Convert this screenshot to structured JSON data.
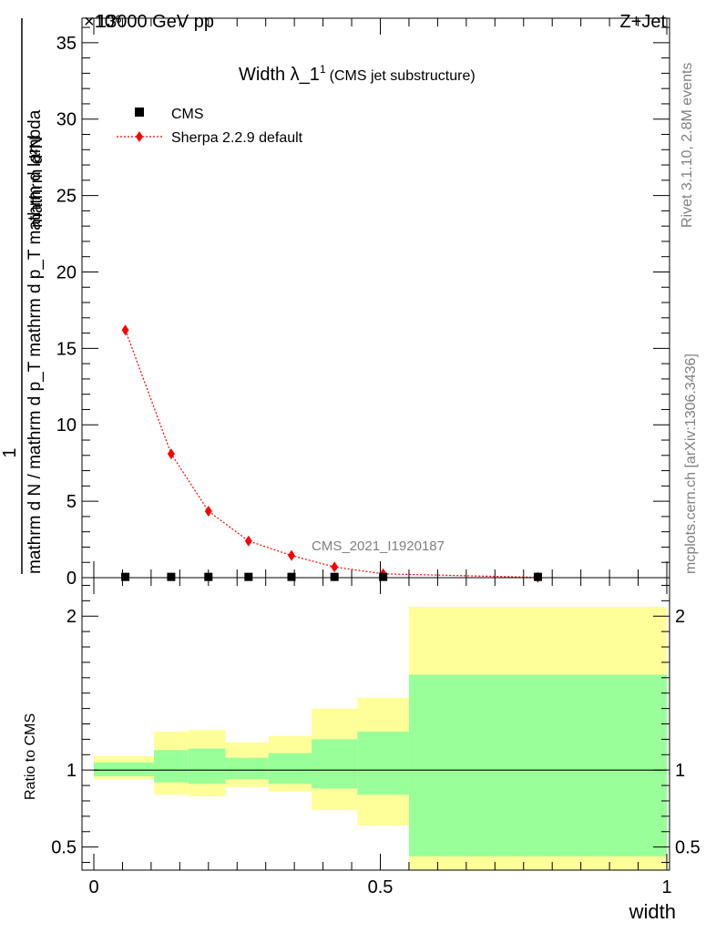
{
  "header": {
    "energy": "13000 GeV pp",
    "process": "Z+Jet",
    "exponent": "×10⁶"
  },
  "title": {
    "main": "Width λ_1",
    "sup": "1",
    "sub": "(CMS jet substructure)"
  },
  "side": {
    "rivet": "Rivet 3.1.10,  2.8M events",
    "source": "mcplots.cern.ch [arXiv:1306.3436]"
  },
  "watermark": "CMS_2021_I1920187",
  "colors": {
    "mc": "#ff0000",
    "band_stat": "#99ff99",
    "band_total": "#ffff99"
  },
  "chart_data": [
    {
      "type": "scatter",
      "name": "main",
      "ylabel_numerator": "1",
      "ylabel_denominator": "mathrm d N / mathrm d p_T mathrm d p_T mathrm d lambda",
      "ylabel_top": "mathrm d²N",
      "xlim": [
        0,
        1
      ],
      "ylim": [
        0,
        36.6
      ],
      "y_ticks": [
        "0",
        "5",
        "10",
        "15",
        "20",
        "25",
        "30",
        "35"
      ],
      "legend": {
        "position": "top-left",
        "entries": [
          "CMS",
          "Sherpa 2.2.9 default"
        ]
      },
      "series": [
        {
          "name": "CMS",
          "marker": "square",
          "x": [
            0.055,
            0.135,
            0.2,
            0.27,
            0.345,
            0.42,
            0.505,
            0.775
          ],
          "y": [
            0.05,
            0.05,
            0.05,
            0.05,
            0.05,
            0.05,
            0.05,
            0.05
          ]
        },
        {
          "name": "Sherpa 2.2.9 default",
          "marker": "diamond",
          "x": [
            0.055,
            0.135,
            0.2,
            0.27,
            0.345,
            0.42,
            0.505,
            0.775
          ],
          "y": [
            16.2,
            8.1,
            4.35,
            2.4,
            1.45,
            0.7,
            0.25,
            0.02
          ]
        }
      ]
    },
    {
      "type": "area",
      "name": "ratio",
      "ylabel": "Ratio to CMS",
      "xlabel": "width",
      "xlim": [
        0,
        1
      ],
      "ylim": [
        0.35,
        2.25
      ],
      "x_ticks": [
        "0",
        "0.5",
        "1"
      ],
      "y_ticks": [
        "0.5",
        "1",
        "2"
      ],
      "bins": [
        {
          "lo": 0.0,
          "hi": 0.105,
          "stat": [
            0.96,
            1.05
          ],
          "total": [
            0.94,
            1.09
          ]
        },
        {
          "lo": 0.105,
          "hi": 0.165,
          "stat": [
            0.92,
            1.13
          ],
          "total": [
            0.84,
            1.25
          ]
        },
        {
          "lo": 0.165,
          "hi": 0.23,
          "stat": [
            0.91,
            1.14
          ],
          "total": [
            0.83,
            1.26
          ]
        },
        {
          "lo": 0.23,
          "hi": 0.305,
          "stat": [
            0.94,
            1.08
          ],
          "total": [
            0.89,
            1.18
          ]
        },
        {
          "lo": 0.305,
          "hi": 0.38,
          "stat": [
            0.91,
            1.11
          ],
          "total": [
            0.86,
            1.22
          ]
        },
        {
          "lo": 0.38,
          "hi": 0.46,
          "stat": [
            0.88,
            1.2
          ],
          "total": [
            0.74,
            1.4
          ]
        },
        {
          "lo": 0.46,
          "hi": 0.55,
          "stat": [
            0.84,
            1.25
          ],
          "total": [
            0.64,
            1.47
          ]
        },
        {
          "lo": 0.55,
          "hi": 1.0,
          "stat": [
            0.44,
            1.62
          ],
          "total": [
            0.35,
            2.06
          ]
        }
      ]
    }
  ]
}
